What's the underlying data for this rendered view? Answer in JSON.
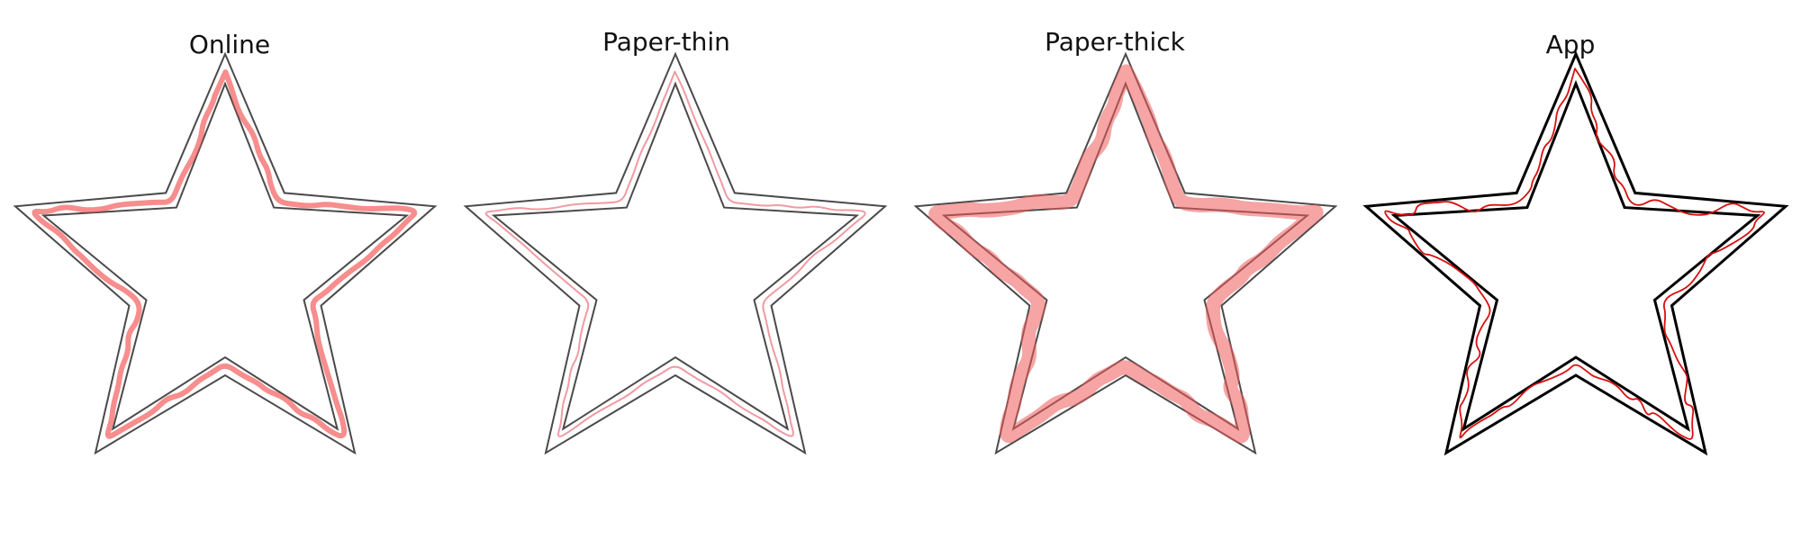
{
  "panels": [
    {
      "title": "Online",
      "style": "online",
      "trace_color": "#f25050"
    },
    {
      "title": "Paper-thin",
      "style": "paper-thin",
      "trace_color": "#ee8890"
    },
    {
      "title": "Paper-thick",
      "style": "paper-thick",
      "trace_color": "#ef5a5a"
    },
    {
      "title": "App",
      "style": "app",
      "trace_color": "#d81010"
    }
  ],
  "colors": {
    "outline": "#4a4a4a",
    "outline_app": "#000000",
    "background": "#ffffff"
  }
}
